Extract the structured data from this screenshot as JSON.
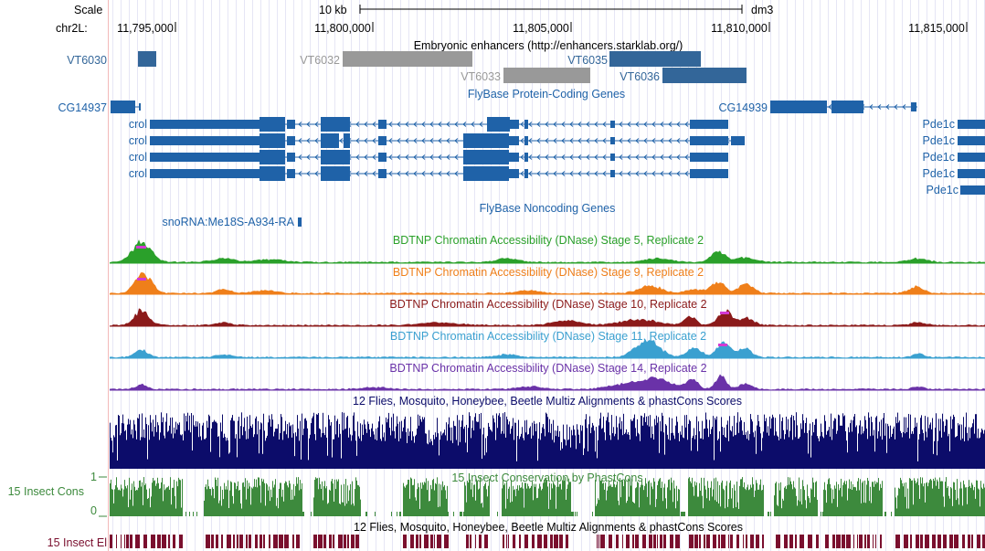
{
  "ruler": {
    "scale_label": "Scale",
    "scale_bar_label": "10 kb",
    "assembly": "dm3",
    "chrom_label": "chr2L:",
    "positions": [
      "11,795,000",
      "11,800,000",
      "11,805,000",
      "11,810,000",
      "11,815,000"
    ]
  },
  "enhancers": {
    "title": "Embryonic enhancers (http://enhancers.starklab.org/)",
    "items": [
      {
        "name": "VT6030",
        "color": "#336699"
      },
      {
        "name": "VT6032",
        "color": "#999999"
      },
      {
        "name": "VT6033",
        "color": "#999999"
      },
      {
        "name": "VT6035",
        "color": "#336699"
      },
      {
        "name": "VT6036",
        "color": "#336699"
      }
    ]
  },
  "coding_genes": {
    "title": "FlyBase Protein-Coding Genes",
    "color": "#1f62a8",
    "genes": [
      "CG14937",
      "CG14939",
      "crol",
      "crol",
      "crol",
      "crol",
      "Pde1c",
      "Pde1c",
      "Pde1c",
      "Pde1c",
      "Pde1c"
    ]
  },
  "noncoding_genes": {
    "title": "FlyBase Noncoding Genes",
    "genes": [
      "snoRNA:Me18S-A934-RA"
    ]
  },
  "dnase_tracks": [
    {
      "title": "BDTNP Chromatin Accessibility (DNase) Stage 5, Replicate 2",
      "color": "#2aa02a"
    },
    {
      "title": "BDTNP Chromatin Accessibility (DNase) Stage 9, Replicate 2",
      "color": "#ef7f1a"
    },
    {
      "title": "BDTNP Chromatin Accessibility (DNase) Stage 10, Replicate 2",
      "color": "#8b1a1a"
    },
    {
      "title": "BDTNP Chromatin Accessibility (DNase) Stage 11, Replicate 2",
      "color": "#3aa0d0"
    },
    {
      "title": "BDTNP Chromatin Accessibility (DNase) Stage 14, Replicate 2",
      "color": "#6a32a8"
    }
  ],
  "multiz": {
    "title": "12 Flies, Mosquito, Honeybee, Beetle Multiz Alignments & phastCons Scores",
    "color": "#0c0c6a"
  },
  "phastcons": {
    "title": "15 Insect Conservation by PhastCons",
    "side_label": "15 Insect Cons",
    "y_max": "1",
    "y_min": "0",
    "color": "#3d8a3d"
  },
  "elements": {
    "title": "12 Flies, Mosquito, Honeybee, Beetle Multiz Alignments & phastCons Scores",
    "side_label": "15 Insect El",
    "color": "#7a0f2e"
  }
}
